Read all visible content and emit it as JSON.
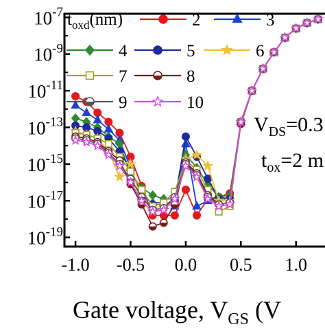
{
  "chart_data": {
    "type": "scatter",
    "ylog": true,
    "xlabel": "Gate voltage, V",
    "xlabel_sub": "GS",
    "xlabel_suffix": " (V",
    "xlim": [
      -1.1,
      1.3
    ],
    "ylim_exp": [
      -19.5,
      -6.8
    ],
    "x_ticks": [
      -1.0,
      -0.5,
      0.0,
      0.5,
      1.0
    ],
    "x_tick_labels": [
      "-1.0",
      "-0.5",
      "0.0",
      "0.5",
      "1.0"
    ],
    "y_tick_exps": [
      -7,
      -9,
      -11,
      -13,
      -15,
      -17,
      -19
    ],
    "y_tick_base": "10",
    "y_tick_exp_labels": [
      "-7",
      "-9",
      "-11",
      "-13",
      "-15",
      "-17",
      "-19"
    ],
    "legend_title": "t",
    "legend_title_sub": "oxd",
    "legend_title_suffix": "(nm)",
    "annotations": {
      "vds": {
        "main": "V",
        "sub": "DS",
        "value": "=0.3"
      },
      "tox": {
        "main": "t",
        "sub": "ox",
        "value": "=2 m"
      }
    },
    "x": [
      -1.0,
      -0.9,
      -0.8,
      -0.7,
      -0.6,
      -0.5,
      -0.4,
      -0.3,
      -0.2,
      -0.1,
      0.0,
      0.1,
      0.2,
      0.3,
      0.4,
      0.5,
      0.6,
      0.7,
      0.8,
      0.9,
      1.0,
      1.1,
      1.2
    ],
    "series": [
      {
        "name": "2",
        "color": "#e31a1c",
        "marker": "circle",
        "fill": "filled",
        "values_exp": [
          -11.3,
          -11.6,
          -12.2,
          -12.7,
          -13.3,
          -14.6,
          -16.2,
          -17.8,
          -17.8,
          -17.8,
          -16.4,
          -17.8,
          -16.9,
          -16.8,
          -16.6,
          -12.8,
          -11.0,
          -9.8,
          -8.9,
          -8.1,
          -7.6,
          -7.3,
          -7.1
        ]
      },
      {
        "name": "3",
        "color": "#1c3fd8",
        "marker": "triangle",
        "fill": "filled",
        "values_exp": [
          -11.8,
          -12.2,
          -12.6,
          -13.1,
          -13.7,
          -15.2,
          -16.8,
          -17.1,
          -17.1,
          -17.3,
          -13.9,
          -17.3,
          -17.0,
          -16.8,
          -16.9,
          -12.7,
          -11.0,
          -9.8,
          -8.9,
          -8.1,
          -7.6,
          -7.3,
          -7.1
        ]
      },
      {
        "name": "4",
        "color": "#2e8b2e",
        "marker": "diamond",
        "fill": "filled",
        "values_exp": [
          -12.5,
          -12.7,
          -13.0,
          -13.5,
          -13.9,
          -15.5,
          -16.3,
          -16.7,
          -16.9,
          -16.9,
          -14.5,
          -15.2,
          -16.1,
          -16.8,
          -16.7,
          -12.7,
          -11.0,
          -9.8,
          -8.9,
          -8.1,
          -7.6,
          -7.3,
          -7.1
        ]
      },
      {
        "name": "5",
        "color": "#1e2a9c",
        "marker": "circle",
        "fill": "filled",
        "values_exp": [
          -12.9,
          -13.0,
          -13.2,
          -13.6,
          -14.3,
          -15.3,
          -16.6,
          -17.2,
          -17.2,
          -17.0,
          -13.5,
          -14.6,
          -15.8,
          -16.9,
          -16.9,
          -12.7,
          -11.0,
          -9.8,
          -8.9,
          -8.1,
          -7.6,
          -7.3,
          -7.1
        ]
      },
      {
        "name": "6",
        "color": "#f0c030",
        "marker": "star",
        "fill": "filled",
        "values_exp": [
          -13.2,
          -13.4,
          -13.6,
          -14.3,
          -15.7,
          -15.0,
          -17.1,
          -17.5,
          -17.2,
          -17.2,
          -14.7,
          -14.5,
          -15.1,
          -17.0,
          -17.0,
          -12.7,
          -11.0,
          -9.8,
          -8.9,
          -8.1,
          -7.6,
          -7.3,
          -7.1
        ]
      },
      {
        "name": "7",
        "color": "#a0a028",
        "marker": "square",
        "fill": "open",
        "values_exp": [
          -13.3,
          -13.4,
          -13.6,
          -13.9,
          -14.6,
          -15.4,
          -16.4,
          -17.3,
          -17.1,
          -16.5,
          -14.8,
          -15.3,
          -16.4,
          -17.6,
          -17.3,
          -12.7,
          -11.0,
          -9.8,
          -8.9,
          -8.1,
          -7.6,
          -7.3,
          -7.1
        ]
      },
      {
        "name": "8",
        "color": "#7a1a1a",
        "marker": "circle",
        "fill": "half",
        "values_exp": [
          -13.5,
          -13.6,
          -13.8,
          -14.3,
          -14.8,
          -16.1,
          -17.2,
          -18.4,
          -18.2,
          -17.2,
          -14.9,
          -15.5,
          -16.7,
          -17.2,
          -17.1,
          -12.8,
          -11.0,
          -9.8,
          -8.9,
          -8.1,
          -7.6,
          -7.3,
          -7.1
        ]
      },
      {
        "name": "9",
        "color": "#555555",
        "marker": "circle",
        "fill": "half",
        "values_exp": [
          -13.6,
          -13.7,
          -13.9,
          -14.4,
          -15.0,
          -15.8,
          -16.8,
          -17.5,
          -17.4,
          -16.8,
          -15.0,
          -15.6,
          -16.8,
          -17.2,
          -17.1,
          -12.7,
          -11.0,
          -9.8,
          -8.9,
          -8.1,
          -7.6,
          -7.3,
          -7.1
        ]
      },
      {
        "name": "10",
        "color": "#d84ad8",
        "marker": "star",
        "fill": "open",
        "values_exp": [
          -13.7,
          -13.8,
          -14.0,
          -14.5,
          -15.1,
          -16.0,
          -17.0,
          -17.6,
          -17.5,
          -16.9,
          -15.1,
          -15.7,
          -16.9,
          -17.3,
          -17.2,
          -12.7,
          -11.0,
          -9.8,
          -8.9,
          -8.1,
          -7.6,
          -7.3,
          -7.1
        ]
      }
    ]
  }
}
